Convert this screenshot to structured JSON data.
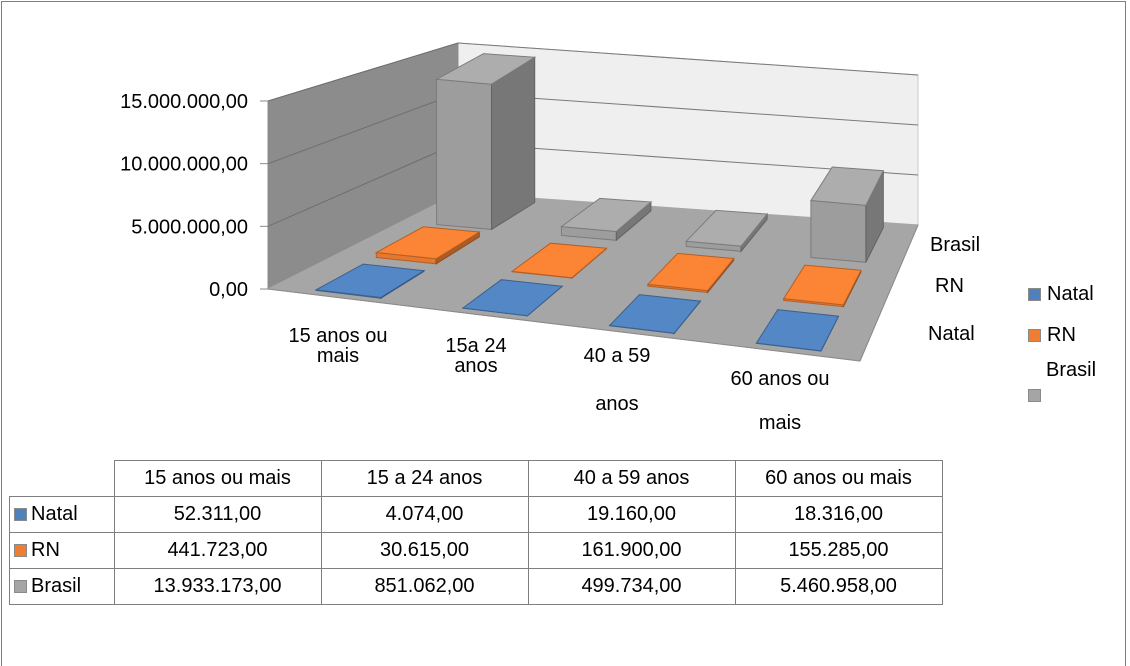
{
  "chart_data": {
    "type": "bar",
    "categories": [
      "15 anos ou mais",
      "15 a 24 anos",
      "40 a 59 anos",
      "60 anos ou mais"
    ],
    "category_tick_lines": [
      [
        "15 anos ou",
        "mais"
      ],
      [
        "15a 24",
        "anos"
      ],
      [
        "40 a 59",
        "anos"
      ],
      [
        "60 anos ou",
        "mais"
      ]
    ],
    "series": [
      {
        "name": "Natal",
        "color": "#4f81bd",
        "values": [
          52311,
          4074,
          19160,
          18316
        ]
      },
      {
        "name": "RN",
        "color": "#f07e32",
        "values": [
          441723,
          30615,
          161900,
          155285
        ]
      },
      {
        "name": "Brasil",
        "color": "#a5a5a5",
        "values": [
          13933173,
          851062,
          499734,
          5460958
        ]
      }
    ],
    "yticks": [
      "0,00",
      "5.000.000,00",
      "10.000.000,00",
      "15.000.000,00"
    ],
    "ylim": [
      0,
      15000000
    ],
    "depth_labels": [
      "Natal",
      "RN",
      "Brasil"
    ],
    "legend_position": "right",
    "gridlines": true,
    "style": "3d-column"
  },
  "table": {
    "headers": [
      "15 anos ou mais",
      "15 a 24 anos",
      "40 a 59 anos",
      "60 anos ou mais"
    ],
    "rows": [
      {
        "label": "Natal",
        "cells": [
          "52.311,00",
          "4.074,00",
          "19.160,00",
          "18.316,00"
        ]
      },
      {
        "label": "RN",
        "cells": [
          "441.723,00",
          "30.615,00",
          "161.900,00",
          "155.285,00"
        ]
      },
      {
        "label": "Brasil",
        "cells": [
          "13.933.173,00",
          "851.062,00",
          "499.734,00",
          "5.460.958,00"
        ]
      }
    ]
  }
}
